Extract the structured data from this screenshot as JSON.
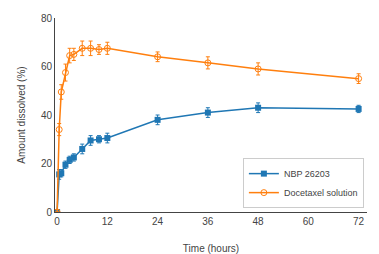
{
  "chart_data": {
    "type": "line",
    "x": [
      0,
      0.5,
      1,
      2,
      3,
      4,
      6,
      8,
      10,
      12,
      24,
      36,
      48,
      72
    ],
    "series": [
      {
        "name": "NBP 26203",
        "marker": "square",
        "values": [
          0,
          15.5,
          16.0,
          19.5,
          21.5,
          22.5,
          26.0,
          29.5,
          30.0,
          30.5,
          38.0,
          41.0,
          43.0,
          42.5
        ],
        "errors": [
          0,
          2.0,
          1.5,
          1.5,
          1.5,
          1.5,
          2.0,
          2.0,
          1.5,
          2.0,
          2.0,
          2.0,
          2.0,
          1.5
        ]
      },
      {
        "name": "Docetaxel solution",
        "marker": "circle-open",
        "values": [
          0,
          34.0,
          49.5,
          57.5,
          64.5,
          65.0,
          67.5,
          67.5,
          67.0,
          67.5,
          64.0,
          61.5,
          59.0,
          55.0
        ],
        "errors": [
          0,
          2.5,
          3.0,
          3.5,
          3.0,
          2.5,
          3.0,
          3.0,
          2.0,
          2.5,
          2.0,
          2.5,
          2.5,
          2.0
        ]
      }
    ],
    "xlabel": "Time (hours)",
    "ylabel": "Amount dissolved (%)",
    "xlim": [
      -0.5,
      74
    ],
    "ylim": [
      0,
      80
    ],
    "xticks": [
      0,
      12,
      24,
      36,
      48,
      60,
      72
    ],
    "yticks": [
      0,
      20,
      40,
      60,
      80
    ],
    "grid": false,
    "legend": "lower right"
  }
}
